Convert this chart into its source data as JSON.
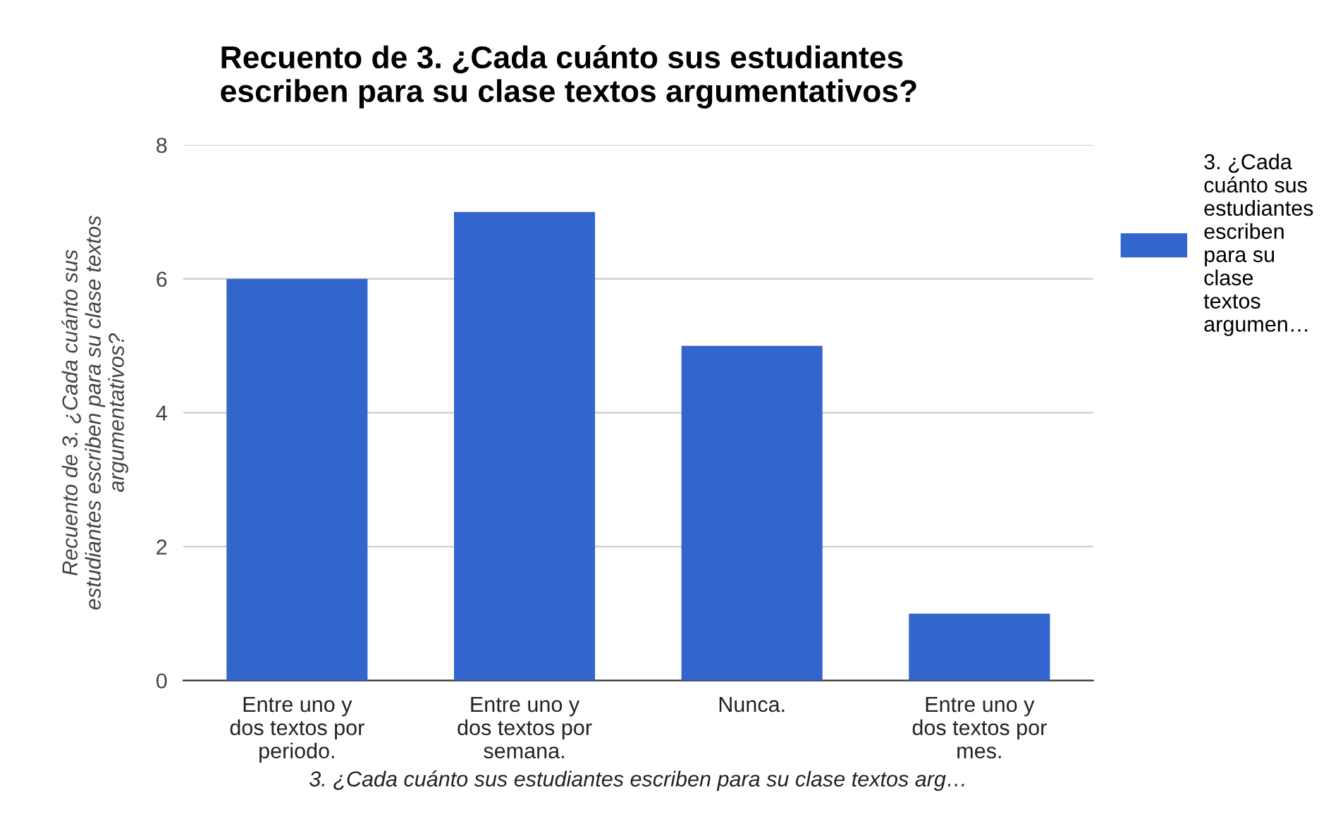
{
  "chart_data": {
    "type": "bar",
    "title": "Recuento de 3. ¿Cada cuánto sus estudiantes\nescriben para su clase textos argumentativos?",
    "xlabel": "3. ¿Cada cuánto sus estudiantes escriben para su clase textos arg…",
    "ylabel": "Recuento de 3. ¿Cada cuánto sus\nestudiantes escriben para su clase textos\nargumentativos?",
    "categories": [
      "Entre uno y\ndos textos por\nperiodo.",
      "Entre uno y\ndos textos por\nsemana.",
      "Nunca.",
      "Entre uno y\ndos textos por\nmes."
    ],
    "series": [
      {
        "name": "3. ¿Cada\ncuánto sus\nestudiantes\nescriben\npara su\nclase\ntextos\nargumen…",
        "color": "#3366cc",
        "values": [
          6,
          7,
          5,
          1
        ]
      }
    ],
    "ylim": [
      0,
      8
    ],
    "yticks": [
      0,
      2,
      4,
      6,
      8
    ],
    "grid": "y",
    "legend": "top right"
  }
}
